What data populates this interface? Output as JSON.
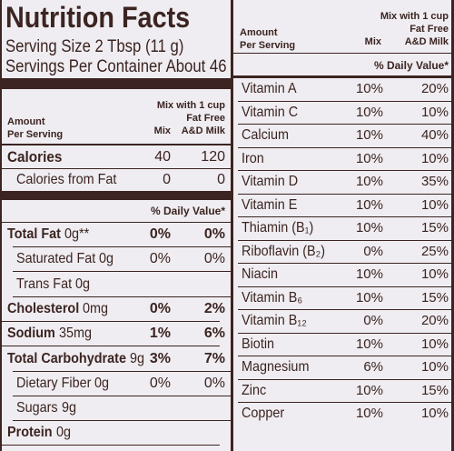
{
  "left": {
    "title": "Nutrition Facts",
    "serving_size": "Serving Size 2 Tbsp (11 g)",
    "servings_per_container": "Servings Per Container About 46",
    "header": {
      "amount": "Amount",
      "per_serving": "Per Serving",
      "mix": "Mix",
      "milk_lines": [
        "Mix with 1 cup",
        "Fat Free",
        "A&D Milk"
      ]
    },
    "calories": [
      {
        "name": "Calories",
        "mix": "40",
        "milk": "120",
        "bold": true
      },
      {
        "name": "Calories from Fat",
        "mix": "0",
        "milk": "0",
        "indent": true
      }
    ],
    "daily_value_heading": "% Daily Value*",
    "nutrients": [
      {
        "name": "Total Fat",
        "amount": "0g**",
        "mix": "0%",
        "milk": "0%",
        "bold": true
      },
      {
        "name": "Saturated Fat",
        "amount": "0g",
        "mix": "0%",
        "milk": "0%",
        "indent": true
      },
      {
        "name": "Trans Fat",
        "amount": "0g",
        "indent": true
      },
      {
        "name": "Cholesterol",
        "amount": "0mg",
        "mix": "0%",
        "milk": "2%",
        "bold": true
      },
      {
        "name": "Sodium",
        "amount": "35mg",
        "mix": "1%",
        "milk": "6%",
        "bold": true
      },
      {
        "name": "Total Carbohydrate",
        "amount": "9g",
        "mix": "3%",
        "milk": "7%",
        "bold": true
      },
      {
        "name": "Dietary Fiber",
        "amount": "0g",
        "mix": "0%",
        "milk": "0%",
        "indent": true
      },
      {
        "name": "Sugars",
        "amount": "9g",
        "indent": true
      },
      {
        "name": "Protein",
        "amount": "0g",
        "bold": true
      }
    ]
  },
  "right": {
    "header": {
      "amount": "Amount",
      "per_serving": "Per Serving",
      "mix": "Mix",
      "milk_lines": [
        "Mix with 1 cup",
        "Fat Free",
        "A&D Milk"
      ]
    },
    "daily_value_heading": "% Daily Value*",
    "vitamins": [
      {
        "name": "Vitamin A",
        "mix": "10%",
        "milk": "20%"
      },
      {
        "name": "Vitamin C",
        "mix": "10%",
        "milk": "10%"
      },
      {
        "name": "Calcium",
        "mix": "10%",
        "milk": "40%"
      },
      {
        "name": "Iron",
        "mix": "10%",
        "milk": "10%"
      },
      {
        "name": "Vitamin D",
        "mix": "10%",
        "milk": "35%"
      },
      {
        "name": "Vitamin E",
        "mix": "10%",
        "milk": "10%"
      },
      {
        "name": "Thiamin (B₁)",
        "mix": "10%",
        "milk": "15%"
      },
      {
        "name": "Riboflavin (B₂)",
        "mix": "0%",
        "milk": "25%"
      },
      {
        "name": "Niacin",
        "mix": "10%",
        "milk": "10%"
      },
      {
        "name": "Vitamin B₆",
        "mix": "10%",
        "milk": "15%"
      },
      {
        "name": "Vitamin B₁₂",
        "mix": "0%",
        "milk": "20%"
      },
      {
        "name": "Biotin",
        "mix": "10%",
        "milk": "10%"
      },
      {
        "name": "Magnesium",
        "mix": "6%",
        "milk": "10%"
      },
      {
        "name": "Zinc",
        "mix": "10%",
        "milk": "15%"
      },
      {
        "name": "Copper",
        "mix": "10%",
        "milk": "10%"
      }
    ]
  }
}
